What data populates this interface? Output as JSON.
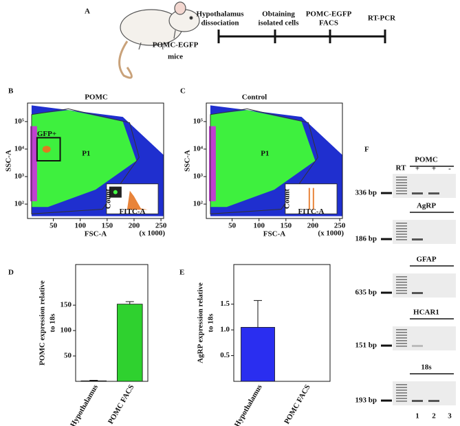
{
  "panel_a": {
    "letter": "A",
    "mouse_label": [
      "POMC-EGFP",
      "mice"
    ],
    "steps": [
      {
        "lines": [
          "Hypothalamus",
          "dissociation"
        ]
      },
      {
        "lines": [
          "Obtaining",
          "isolated cells"
        ]
      },
      {
        "lines": [
          "POMC-EGFP",
          "FACS"
        ]
      },
      {
        "lines": [
          "RT-PCR"
        ]
      }
    ]
  },
  "chart_data": [
    {
      "type": "scatter",
      "panel_label": "B",
      "title": "POMC",
      "xlabel": "FSC-A",
      "ylabel": "SSC-A",
      "x_note": "(x 1000)",
      "xlim": [
        2,
        255
      ],
      "xticks": [
        50,
        100,
        150,
        200,
        250
      ],
      "ylim": [
        30,
        470000
      ],
      "log_y": true,
      "yticks": [
        {
          "value": 100,
          "label": "10²"
        },
        {
          "value": 1000,
          "label": "10³"
        },
        {
          "value": 10000,
          "label": "10⁴"
        },
        {
          "value": 100000,
          "label": "10⁵"
        }
      ],
      "gates": [
        "P1",
        "GFP+"
      ],
      "inset": {
        "xlabel": "FITC-A",
        "ylabel": "Count"
      }
    },
    {
      "type": "scatter",
      "panel_label": "C",
      "title": "Control",
      "xlabel": "FSC-A",
      "ylabel": "SSC-A",
      "x_note": "(x 1000)",
      "xlim": [
        2,
        255
      ],
      "xticks": [
        50,
        100,
        150,
        200,
        250
      ],
      "ylim": [
        30,
        470000
      ],
      "log_y": true,
      "yticks": [
        {
          "value": 100,
          "label": "10²"
        },
        {
          "value": 1000,
          "label": "10³"
        },
        {
          "value": 10000,
          "label": "10⁴"
        },
        {
          "value": 100000,
          "label": "10⁵"
        }
      ],
      "gates": [
        "P1"
      ],
      "inset": {
        "xlabel": "FITC-A",
        "ylabel": "Count"
      }
    },
    {
      "type": "bar",
      "panel_label": "D",
      "ylabel": [
        "POMC expression relative",
        "to 18s"
      ],
      "categories": [
        "Hypothalamus",
        "POMC FACS"
      ],
      "values": [
        1,
        152
      ],
      "errors": [
        1,
        5
      ],
      "colors": [
        "#2fd12f",
        "#2fd12f"
      ],
      "ylim": [
        0,
        230
      ],
      "yticks": [
        50,
        100,
        150
      ]
    },
    {
      "type": "bar",
      "panel_label": "E",
      "ylabel": [
        "AgRP expression relative",
        "to 18s"
      ],
      "categories": [
        "Hypothalamus",
        "POMC FACS"
      ],
      "values": [
        1.05,
        0
      ],
      "errors": [
        0.52,
        0
      ],
      "colors": [
        "#2a2ef0",
        "#2a2ef0"
      ],
      "ylim": [
        0,
        2.27
      ],
      "yticks": [
        0.5,
        {
          "value": 1,
          "label": "1.0"
        },
        1.5
      ]
    }
  ],
  "gel": {
    "letter": "F",
    "ladder_label": "RT",
    "lane_signs": [
      "+",
      "+",
      "-"
    ],
    "lane_numbers": [
      "1",
      "2",
      "3"
    ],
    "genes": [
      {
        "name": "POMC",
        "size": "336 bp",
        "bands": [
          true,
          true,
          false
        ]
      },
      {
        "name": "AgRP",
        "size": "186 bp",
        "bands": [
          true,
          false,
          false
        ]
      },
      {
        "name": "GFAP",
        "size": "635 bp",
        "bands": [
          true,
          false,
          false
        ]
      },
      {
        "name": "HCAR1",
        "size": "151 bp",
        "bands": [
          true,
          false,
          false
        ]
      },
      {
        "name": "18s",
        "size": "193 bp",
        "bands": [
          true,
          true,
          false
        ]
      }
    ]
  }
}
